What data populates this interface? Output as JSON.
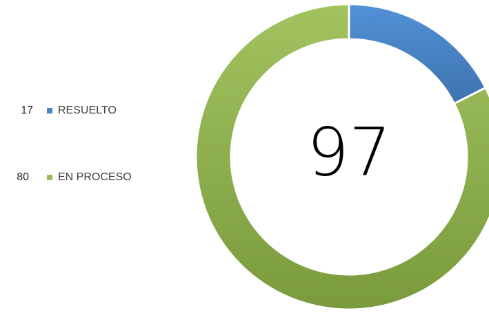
{
  "chart_data": {
    "type": "donut",
    "categories": [
      "RESUELTO",
      "EN PROCESO"
    ],
    "values": [
      17,
      80
    ],
    "colors": [
      "#4a86c8",
      "#9bbb59"
    ],
    "center_label": 97
  }
}
